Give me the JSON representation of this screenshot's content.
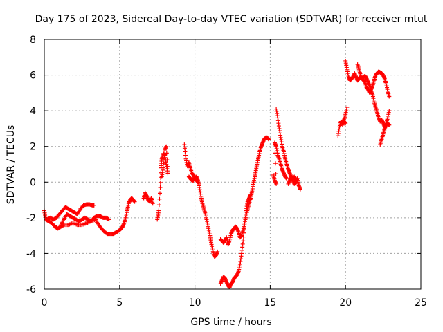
{
  "chart_data": {
    "type": "scatter",
    "title": "Day 175 of 2023, Sidereal Day-to-day VTEC variation (SDTVAR) for receiver mtut",
    "xlabel": "GPS time / hours",
    "ylabel": "SDTVAR / TECUs",
    "xlim": [
      0,
      25
    ],
    "ylim": [
      -6,
      8
    ],
    "xticks": [
      0,
      5,
      10,
      15,
      20,
      25
    ],
    "yticks": [
      -6,
      -4,
      -2,
      0,
      2,
      4,
      6,
      8
    ],
    "grid": true,
    "marker": "+",
    "color": "#ff0000",
    "series": [
      {
        "name": "SDTVAR",
        "segments": [
          [
            [
              0.0,
              -1.6
            ],
            [
              0.1,
              -2.1
            ],
            [
              0.3,
              -2.2
            ],
            [
              0.5,
              -2.3
            ],
            [
              0.7,
              -2.5
            ],
            [
              0.9,
              -2.6
            ],
            [
              1.1,
              -2.5
            ],
            [
              1.3,
              -2.4
            ],
            [
              1.6,
              -2.4
            ],
            [
              1.9,
              -2.3
            ],
            [
              2.2,
              -2.4
            ],
            [
              2.5,
              -2.4
            ],
            [
              2.8,
              -2.3
            ],
            [
              3.1,
              -2.2
            ],
            [
              3.4,
              -2.1
            ],
            [
              3.6,
              -2.4
            ],
            [
              3.8,
              -2.6
            ],
            [
              4.0,
              -2.8
            ],
            [
              4.2,
              -2.9
            ],
            [
              4.4,
              -2.9
            ],
            [
              4.6,
              -2.9
            ],
            [
              4.8,
              -2.8
            ],
            [
              5.0,
              -2.7
            ],
            [
              5.1,
              -2.6
            ],
            [
              5.2,
              -2.5
            ],
            [
              5.3,
              -2.3
            ],
            [
              5.4,
              -2.0
            ],
            [
              5.5,
              -1.6
            ],
            [
              5.6,
              -1.2
            ],
            [
              5.7,
              -1.0
            ],
            [
              5.8,
              -0.9
            ],
            [
              5.9,
              -1.0
            ],
            [
              6.0,
              -1.1
            ]
          ],
          [
            [
              0.2,
              -2.1
            ],
            [
              0.4,
              -2.0
            ],
            [
              0.6,
              -2.1
            ],
            [
              0.8,
              -2.0
            ],
            [
              1.0,
              -1.8
            ],
            [
              1.2,
              -1.6
            ],
            [
              1.4,
              -1.4
            ],
            [
              1.6,
              -1.5
            ],
            [
              1.8,
              -1.6
            ],
            [
              2.0,
              -1.7
            ],
            [
              2.2,
              -1.8
            ],
            [
              2.4,
              -1.5
            ],
            [
              2.6,
              -1.3
            ],
            [
              2.8,
              -1.25
            ],
            [
              3.0,
              -1.25
            ],
            [
              3.2,
              -1.3
            ],
            [
              3.3,
              -1.3
            ]
          ],
          [
            [
              1.1,
              -2.4
            ],
            [
              1.3,
              -2.1
            ],
            [
              1.5,
              -1.8
            ],
            [
              1.7,
              -1.9
            ],
            [
              1.9,
              -2.0
            ],
            [
              2.1,
              -2.1
            ],
            [
              2.3,
              -2.2
            ],
            [
              2.5,
              -2.1
            ],
            [
              2.7,
              -2.0
            ],
            [
              2.9,
              -2.1
            ],
            [
              3.1,
              -2.2
            ],
            [
              3.3,
              -2.0
            ],
            [
              3.5,
              -1.9
            ],
            [
              3.7,
              -1.9
            ],
            [
              3.9,
              -2.0
            ],
            [
              4.1,
              -2.0
            ],
            [
              4.3,
              -2.1
            ]
          ],
          [
            [
              6.6,
              -0.9
            ],
            [
              6.7,
              -0.6
            ],
            [
              6.8,
              -0.8
            ],
            [
              6.9,
              -1.0
            ],
            [
              7.0,
              -1.1
            ],
            [
              7.1,
              -0.9
            ],
            [
              7.2,
              -1.2
            ]
          ],
          [
            [
              7.5,
              -2.1
            ],
            [
              7.6,
              -1.6
            ],
            [
              7.7,
              -0.3
            ],
            [
              7.75,
              0.8
            ],
            [
              7.8,
              1.3
            ],
            [
              7.9,
              1.6
            ],
            [
              8.0,
              1.5
            ],
            [
              8.1,
              1.0
            ],
            [
              8.2,
              0.5
            ],
            [
              8.1,
              2.0
            ],
            [
              8.0,
              1.8
            ],
            [
              7.9,
              0.8
            ],
            [
              7.8,
              0.3
            ]
          ],
          [
            [
              9.3,
              2.1
            ],
            [
              9.4,
              1.3
            ],
            [
              9.5,
              0.9
            ],
            [
              9.6,
              1.1
            ],
            [
              9.7,
              0.8
            ],
            [
              9.8,
              0.5
            ],
            [
              9.9,
              0.4
            ],
            [
              10.0,
              0.2
            ],
            [
              10.1,
              0.3
            ],
            [
              10.2,
              0.1
            ],
            [
              10.3,
              -0.3
            ],
            [
              10.4,
              -0.8
            ],
            [
              10.5,
              -1.2
            ],
            [
              10.6,
              -1.5
            ],
            [
              10.7,
              -1.8
            ],
            [
              10.8,
              -2.2
            ],
            [
              10.9,
              -2.6
            ],
            [
              11.0,
              -3.0
            ],
            [
              11.1,
              -3.5
            ],
            [
              11.2,
              -3.9
            ],
            [
              11.3,
              -4.2
            ],
            [
              11.4,
              -4.1
            ],
            [
              11.5,
              -3.9
            ]
          ],
          [
            [
              9.6,
              0.3
            ],
            [
              9.7,
              0.2
            ],
            [
              9.8,
              0.1
            ],
            [
              9.9,
              0.1
            ],
            [
              10.0,
              0.3
            ],
            [
              10.1,
              0.1
            ],
            [
              10.2,
              0.0
            ]
          ],
          [
            [
              11.7,
              -3.2
            ],
            [
              11.8,
              -3.3
            ],
            [
              11.9,
              -3.4
            ],
            [
              12.0,
              -3.3
            ],
            [
              12.1,
              -3.1
            ],
            [
              12.2,
              -3.5
            ],
            [
              12.3,
              -3.3
            ],
            [
              12.4,
              -2.9
            ],
            [
              12.5,
              -2.7
            ],
            [
              12.6,
              -2.6
            ],
            [
              12.7,
              -2.5
            ],
            [
              12.8,
              -2.6
            ],
            [
              12.9,
              -2.8
            ],
            [
              13.0,
              -3.1
            ],
            [
              13.1,
              -3.0
            ],
            [
              13.2,
              -2.7
            ],
            [
              13.3,
              -2.3
            ],
            [
              13.4,
              -1.9
            ],
            [
              13.5,
              -1.5
            ],
            [
              13.6,
              -1.2
            ],
            [
              13.7,
              -0.9
            ],
            [
              13.8,
              -0.5
            ],
            [
              13.9,
              0.0
            ],
            [
              14.0,
              0.4
            ],
            [
              14.1,
              0.9
            ],
            [
              14.2,
              1.3
            ],
            [
              14.3,
              1.7
            ],
            [
              14.4,
              2.0
            ],
            [
              14.5,
              2.2
            ],
            [
              14.6,
              2.4
            ],
            [
              14.7,
              2.5
            ],
            [
              14.8,
              2.5
            ],
            [
              14.9,
              2.4
            ]
          ],
          [
            [
              11.7,
              -5.7
            ],
            [
              11.8,
              -5.5
            ],
            [
              11.9,
              -5.3
            ],
            [
              12.0,
              -5.4
            ],
            [
              12.1,
              -5.6
            ],
            [
              12.2,
              -5.8
            ],
            [
              12.3,
              -5.9
            ],
            [
              12.4,
              -5.7
            ],
            [
              12.5,
              -5.6
            ],
            [
              12.6,
              -5.4
            ],
            [
              12.7,
              -5.3
            ],
            [
              12.8,
              -5.2
            ],
            [
              12.9,
              -5.0
            ],
            [
              13.0,
              -4.6
            ],
            [
              13.1,
              -4.0
            ],
            [
              13.2,
              -3.3
            ],
            [
              13.3,
              -2.4
            ],
            [
              13.4,
              -1.6
            ],
            [
              13.5,
              -1.1
            ],
            [
              13.6,
              -0.9
            ],
            [
              13.7,
              -0.7
            ]
          ],
          [
            [
              15.2,
              0.4
            ],
            [
              15.3,
              0.1
            ],
            [
              15.4,
              -0.1
            ],
            [
              15.3,
              2.2
            ],
            [
              15.4,
              2.0
            ],
            [
              15.5,
              1.5
            ],
            [
              15.6,
              1.3
            ],
            [
              15.7,
              1.0
            ],
            [
              15.8,
              0.7
            ],
            [
              15.9,
              0.5
            ],
            [
              16.0,
              0.3
            ],
            [
              16.1,
              0.2
            ]
          ],
          [
            [
              15.4,
              4.1
            ],
            [
              15.5,
              3.6
            ],
            [
              15.6,
              3.0
            ],
            [
              15.7,
              2.5
            ],
            [
              15.8,
              2.0
            ],
            [
              15.9,
              1.7
            ],
            [
              16.0,
              1.3
            ],
            [
              16.1,
              1.0
            ],
            [
              16.2,
              0.7
            ],
            [
              16.3,
              0.5
            ],
            [
              16.4,
              0.3
            ],
            [
              16.5,
              0.1
            ],
            [
              16.6,
              -0.1
            ],
            [
              16.7,
              0.0
            ],
            [
              16.8,
              0.2
            ],
            [
              16.9,
              -0.2
            ],
            [
              17.0,
              -0.4
            ]
          ],
          [
            [
              16.2,
              -0.1
            ],
            [
              16.3,
              0.1
            ],
            [
              16.4,
              0.3
            ],
            [
              16.5,
              0.2
            ],
            [
              16.6,
              0.3
            ],
            [
              16.7,
              0.1
            ]
          ],
          [
            [
              19.5,
              2.6
            ],
            [
              19.6,
              3.1
            ],
            [
              19.7,
              3.4
            ],
            [
              19.8,
              3.3
            ],
            [
              19.9,
              3.5
            ],
            [
              20.0,
              3.8
            ],
            [
              20.1,
              4.2
            ]
          ],
          [
            [
              19.8,
              3.2
            ],
            [
              19.9,
              3.4
            ],
            [
              20.0,
              3.3
            ]
          ],
          [
            [
              20.0,
              6.8
            ],
            [
              20.1,
              6.3
            ],
            [
              20.2,
              5.9
            ],
            [
              20.3,
              5.7
            ],
            [
              20.4,
              5.8
            ],
            [
              20.5,
              5.9
            ],
            [
              20.6,
              6.1
            ],
            [
              20.7,
              5.9
            ],
            [
              20.8,
              5.7
            ],
            [
              20.9,
              5.8
            ],
            [
              21.0,
              5.9
            ],
            [
              21.1,
              5.8
            ],
            [
              21.2,
              5.7
            ],
            [
              21.3,
              5.6
            ],
            [
              21.4,
              5.3
            ],
            [
              21.5,
              5.2
            ],
            [
              21.6,
              5.0
            ],
            [
              21.7,
              5.2
            ],
            [
              21.8,
              5.4
            ],
            [
              21.9,
              5.7
            ],
            [
              22.0,
              6.0
            ],
            [
              22.1,
              6.1
            ],
            [
              22.2,
              6.2
            ],
            [
              22.3,
              6.15
            ],
            [
              22.4,
              6.1
            ],
            [
              22.5,
              6.0
            ],
            [
              22.6,
              5.8
            ],
            [
              22.7,
              5.5
            ],
            [
              22.8,
              5.1
            ],
            [
              22.9,
              4.8
            ]
          ],
          [
            [
              20.8,
              6.6
            ],
            [
              20.9,
              6.3
            ],
            [
              21.0,
              6.0
            ],
            [
              21.1,
              5.8
            ],
            [
              21.2,
              5.9
            ],
            [
              21.3,
              5.95
            ],
            [
              21.4,
              5.8
            ],
            [
              21.5,
              5.6
            ],
            [
              21.6,
              5.4
            ],
            [
              21.7,
              5.1
            ],
            [
              21.8,
              4.9
            ],
            [
              21.9,
              4.5
            ],
            [
              22.0,
              4.2
            ],
            [
              22.1,
              3.9
            ],
            [
              22.2,
              3.6
            ],
            [
              22.3,
              3.4
            ],
            [
              22.4,
              3.5
            ],
            [
              22.5,
              3.3
            ],
            [
              22.6,
              3.1
            ],
            [
              22.7,
              3.3
            ],
            [
              22.8,
              3.6
            ],
            [
              22.9,
              4.0
            ]
          ],
          [
            [
              22.3,
              2.1
            ],
            [
              22.4,
              2.4
            ],
            [
              22.5,
              2.7
            ],
            [
              22.6,
              3.0
            ],
            [
              22.7,
              3.2
            ],
            [
              22.8,
              3.3
            ],
            [
              22.9,
              3.2
            ]
          ]
        ]
      }
    ]
  }
}
